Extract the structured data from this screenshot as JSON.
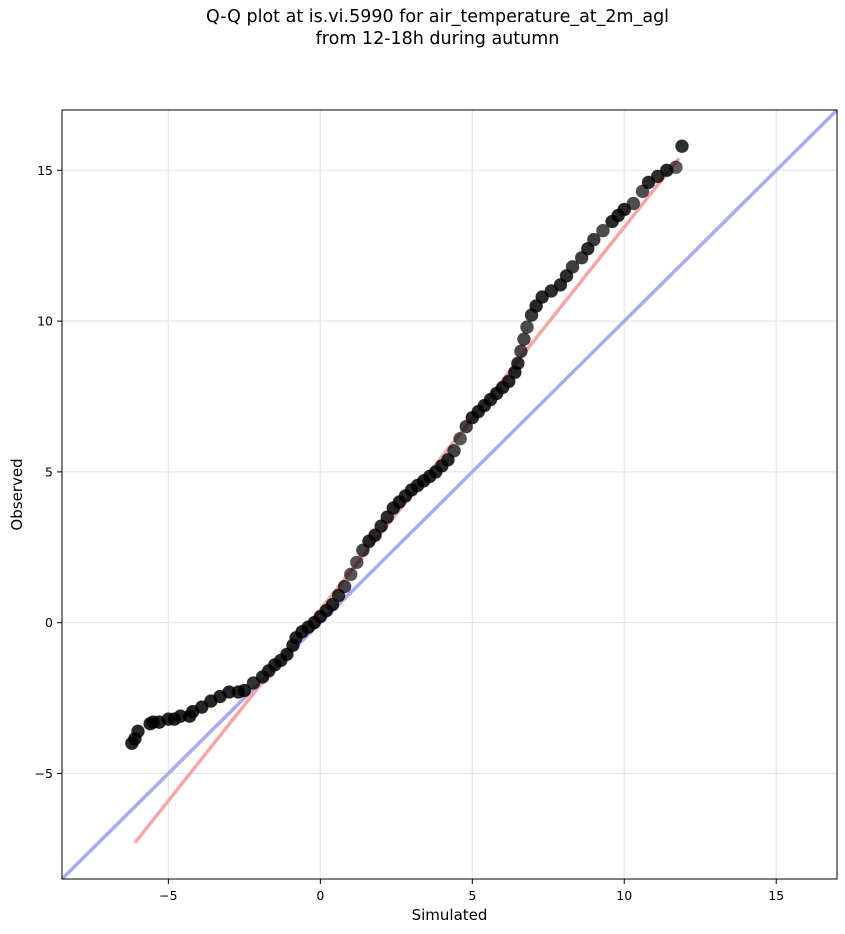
{
  "chart_data": {
    "type": "scatter",
    "title": "Q-Q plot at is.vi.5990 for air_temperature_at_2m_agl\nfrom 12-18h during autumn",
    "xlabel": "Simulated",
    "ylabel": "Observed",
    "xlim": [
      -8.5,
      17
    ],
    "ylim": [
      -8.5,
      17
    ],
    "xticks": [
      -5,
      0,
      5,
      10,
      15
    ],
    "yticks": [
      -5,
      0,
      5,
      10,
      15
    ],
    "xtick_labels": [
      "−5",
      "0",
      "5",
      "10",
      "15"
    ],
    "ytick_labels": [
      "−5",
      "0",
      "5",
      "10",
      "15"
    ],
    "grid": true,
    "point_color": "#000000",
    "series": [
      {
        "kind": "quantiles",
        "points": [
          [
            -6.2,
            -4.0
          ],
          [
            -6.1,
            -3.85
          ],
          [
            -6.0,
            -3.6
          ],
          [
            -5.6,
            -3.35
          ],
          [
            -5.5,
            -3.3
          ],
          [
            -5.3,
            -3.3
          ],
          [
            -5.0,
            -3.2
          ],
          [
            -4.8,
            -3.2
          ],
          [
            -4.6,
            -3.1
          ],
          [
            -4.3,
            -3.1
          ],
          [
            -4.2,
            -2.95
          ],
          [
            -3.9,
            -2.8
          ],
          [
            -3.6,
            -2.6
          ],
          [
            -3.3,
            -2.45
          ],
          [
            -3.0,
            -2.3
          ],
          [
            -2.7,
            -2.3
          ],
          [
            -2.5,
            -2.25
          ],
          [
            -2.2,
            -2.0
          ],
          [
            -1.9,
            -1.8
          ],
          [
            -1.7,
            -1.6
          ],
          [
            -1.5,
            -1.4
          ],
          [
            -1.3,
            -1.25
          ],
          [
            -1.1,
            -1.05
          ],
          [
            -0.9,
            -0.75
          ],
          [
            -0.8,
            -0.5
          ],
          [
            -0.6,
            -0.3
          ],
          [
            -0.4,
            -0.15
          ],
          [
            -0.2,
            0.0
          ],
          [
            0.0,
            0.2
          ],
          [
            0.2,
            0.4
          ],
          [
            0.4,
            0.6
          ],
          [
            0.6,
            0.9
          ],
          [
            0.8,
            1.2
          ],
          [
            1.0,
            1.6
          ],
          [
            1.2,
            2.0
          ],
          [
            1.4,
            2.4
          ],
          [
            1.6,
            2.7
          ],
          [
            1.8,
            2.9
          ],
          [
            2.0,
            3.2
          ],
          [
            2.2,
            3.5
          ],
          [
            2.4,
            3.8
          ],
          [
            2.6,
            4.0
          ],
          [
            2.8,
            4.2
          ],
          [
            3.0,
            4.4
          ],
          [
            3.2,
            4.55
          ],
          [
            3.4,
            4.7
          ],
          [
            3.6,
            4.85
          ],
          [
            3.8,
            5.0
          ],
          [
            4.0,
            5.2
          ],
          [
            4.2,
            5.4
          ],
          [
            4.4,
            5.7
          ],
          [
            4.6,
            6.1
          ],
          [
            4.8,
            6.5
          ],
          [
            5.0,
            6.8
          ],
          [
            5.2,
            7.0
          ],
          [
            5.4,
            7.2
          ],
          [
            5.6,
            7.4
          ],
          [
            5.8,
            7.6
          ],
          [
            6.0,
            7.8
          ],
          [
            6.2,
            8.0
          ],
          [
            6.4,
            8.3
          ],
          [
            6.5,
            8.6
          ],
          [
            6.6,
            9.0
          ],
          [
            6.7,
            9.4
          ],
          [
            6.8,
            9.8
          ],
          [
            6.95,
            10.2
          ],
          [
            7.1,
            10.5
          ],
          [
            7.3,
            10.8
          ],
          [
            7.6,
            11.0
          ],
          [
            7.9,
            11.2
          ],
          [
            8.1,
            11.5
          ],
          [
            8.3,
            11.8
          ],
          [
            8.6,
            12.1
          ],
          [
            8.8,
            12.4
          ],
          [
            9.0,
            12.7
          ],
          [
            9.3,
            13.0
          ],
          [
            9.6,
            13.3
          ],
          [
            9.8,
            13.5
          ],
          [
            10.0,
            13.7
          ],
          [
            10.3,
            13.9
          ],
          [
            10.6,
            14.3
          ],
          [
            10.8,
            14.6
          ],
          [
            11.1,
            14.8
          ],
          [
            11.4,
            15.0
          ],
          [
            11.7,
            15.1
          ],
          [
            11.9,
            15.8
          ]
        ]
      },
      {
        "kind": "identity_line",
        "color": "#aaaaf0",
        "x": [
          -8.5,
          17
        ],
        "y": [
          -8.5,
          17
        ]
      },
      {
        "kind": "fit_line",
        "color": "#f5a6a6",
        "x": [
          -6.1,
          11.8
        ],
        "y": [
          -7.3,
          15.4
        ]
      }
    ]
  }
}
